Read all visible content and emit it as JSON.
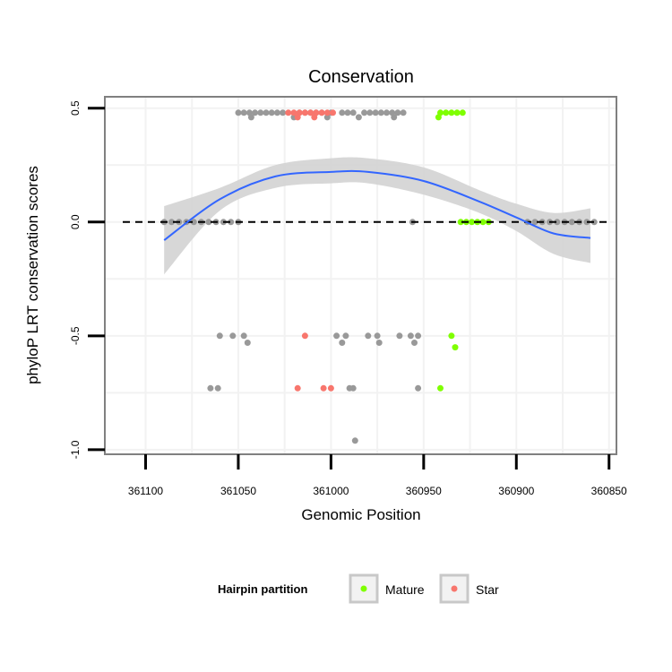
{
  "chart_data": {
    "type": "scatter",
    "title": "Conservation",
    "xlabel": "Genomic Position",
    "ylabel": "phyloP LRT conservation scores",
    "x_reversed": true,
    "xlim": [
      361122,
      360846
    ],
    "ylim": [
      -1.02,
      0.55
    ],
    "x_ticks": [
      361100,
      361050,
      361000,
      360950,
      360900,
      360850
    ],
    "x_tick_labels": [
      "361100",
      "361050",
      "361000",
      "360950",
      "360900",
      "360850"
    ],
    "y_ticks": [
      0.5,
      0.0,
      -0.5,
      -1.0
    ],
    "y_tick_labels": [
      "0.5",
      "0.0",
      "-0.5",
      "-1.0"
    ],
    "grid": true,
    "reference_line": {
      "y": 0,
      "style": "dashed"
    },
    "legend": {
      "title": "Hairpin partition",
      "position": "bottom",
      "entries": [
        {
          "label": "Mature",
          "color": "#7FFF00"
        },
        {
          "label": "Star",
          "color": "#F8766D"
        }
      ]
    },
    "colors": {
      "other": "#999999",
      "mature": "#7FFF00",
      "star": "#F8766D",
      "smooth": "#3366FF",
      "band": "#D3D3D3"
    },
    "series": [
      {
        "group": "other",
        "points": [
          [
            361050,
            0.48
          ],
          [
            361047,
            0.48
          ],
          [
            361044,
            0.48
          ],
          [
            361041,
            0.48
          ],
          [
            361038,
            0.48
          ],
          [
            361035,
            0.48
          ],
          [
            361032,
            0.48
          ],
          [
            361029,
            0.48
          ],
          [
            361026,
            0.48
          ],
          [
            361017,
            0.48
          ],
          [
            361014,
            0.48
          ],
          [
            361011,
            0.48
          ],
          [
            361008,
            0.48
          ],
          [
            361005,
            0.48
          ],
          [
            361000,
            0.48
          ],
          [
            360994,
            0.48
          ],
          [
            360991,
            0.48
          ],
          [
            360988,
            0.48
          ],
          [
            360982,
            0.48
          ],
          [
            360979,
            0.48
          ],
          [
            360976,
            0.48
          ],
          [
            360973,
            0.48
          ],
          [
            360970,
            0.48
          ],
          [
            360967,
            0.48
          ],
          [
            360964,
            0.48
          ],
          [
            360961,
            0.48
          ],
          [
            361043,
            0.46
          ],
          [
            361020,
            0.46
          ],
          [
            361002,
            0.46
          ],
          [
            360985,
            0.46
          ],
          [
            360966,
            0.46
          ],
          [
            361060,
            -0.5
          ],
          [
            361053,
            -0.5
          ],
          [
            361047,
            -0.5
          ],
          [
            361045,
            -0.53
          ],
          [
            360997,
            -0.5
          ],
          [
            360992,
            -0.5
          ],
          [
            360980,
            -0.5
          ],
          [
            360975,
            -0.5
          ],
          [
            360963,
            -0.5
          ],
          [
            360957,
            -0.5
          ],
          [
            360953,
            -0.5
          ],
          [
            360994,
            -0.53
          ],
          [
            360974,
            -0.53
          ],
          [
            360955,
            -0.53
          ],
          [
            361065,
            -0.73
          ],
          [
            361061,
            -0.73
          ],
          [
            360990,
            -0.73
          ],
          [
            360988,
            -0.73
          ],
          [
            360953,
            -0.73
          ],
          [
            360987,
            -0.96
          ],
          [
            361090,
            0.0
          ],
          [
            361086,
            0.0
          ],
          [
            361082,
            0.0
          ],
          [
            361078,
            0.0
          ],
          [
            361074,
            0.0
          ],
          [
            361070,
            0.0
          ],
          [
            361066,
            0.0
          ],
          [
            361062,
            0.0
          ],
          [
            361058,
            0.0
          ],
          [
            361054,
            0.0
          ],
          [
            361050,
            0.0
          ],
          [
            360956,
            0.0
          ],
          [
            360894,
            0.0
          ],
          [
            360890,
            0.0
          ],
          [
            360886,
            0.0
          ],
          [
            360882,
            0.0
          ],
          [
            360878,
            0.0
          ],
          [
            360874,
            0.0
          ],
          [
            360870,
            0.0
          ],
          [
            360866,
            0.0
          ],
          [
            360862,
            0.0
          ],
          [
            360858,
            0.0
          ]
        ]
      },
      {
        "group": "star",
        "points": [
          [
            361023,
            0.48
          ],
          [
            361020,
            0.48
          ],
          [
            361017,
            0.48
          ],
          [
            361014,
            0.48
          ],
          [
            361011,
            0.48
          ],
          [
            361008,
            0.48
          ],
          [
            361005,
            0.48
          ],
          [
            361002,
            0.48
          ],
          [
            360999,
            0.48
          ],
          [
            361018,
            0.46
          ],
          [
            361009,
            0.46
          ],
          [
            361014,
            -0.5
          ],
          [
            361018,
            -0.73
          ],
          [
            361004,
            -0.73
          ],
          [
            361000,
            -0.73
          ]
        ]
      },
      {
        "group": "mature",
        "points": [
          [
            360941,
            0.48
          ],
          [
            360938,
            0.48
          ],
          [
            360935,
            0.48
          ],
          [
            360932,
            0.48
          ],
          [
            360929,
            0.48
          ],
          [
            360942,
            0.46
          ],
          [
            360935,
            -0.5
          ],
          [
            360933,
            -0.55
          ],
          [
            360941,
            -0.73
          ],
          [
            360930,
            0.0
          ],
          [
            360927,
            0.0
          ],
          [
            360924,
            0.0
          ],
          [
            360921,
            0.0
          ],
          [
            360918,
            0.0
          ],
          [
            360915,
            0.0
          ]
        ]
      }
    ],
    "smooth_line": {
      "x": [
        361090,
        361060,
        361030,
        361000,
        360980,
        360950,
        360920,
        360900,
        360880,
        360860
      ],
      "y": [
        -0.08,
        0.1,
        0.2,
        0.22,
        0.22,
        0.18,
        0.09,
        0.02,
        -0.05,
        -0.07
      ],
      "lower": [
        -0.23,
        0.05,
        0.15,
        0.17,
        0.17,
        0.12,
        0.04,
        -0.04,
        -0.14,
        -0.18
      ],
      "upper": [
        0.07,
        0.15,
        0.25,
        0.28,
        0.28,
        0.24,
        0.14,
        0.08,
        0.04,
        0.06
      ]
    }
  }
}
